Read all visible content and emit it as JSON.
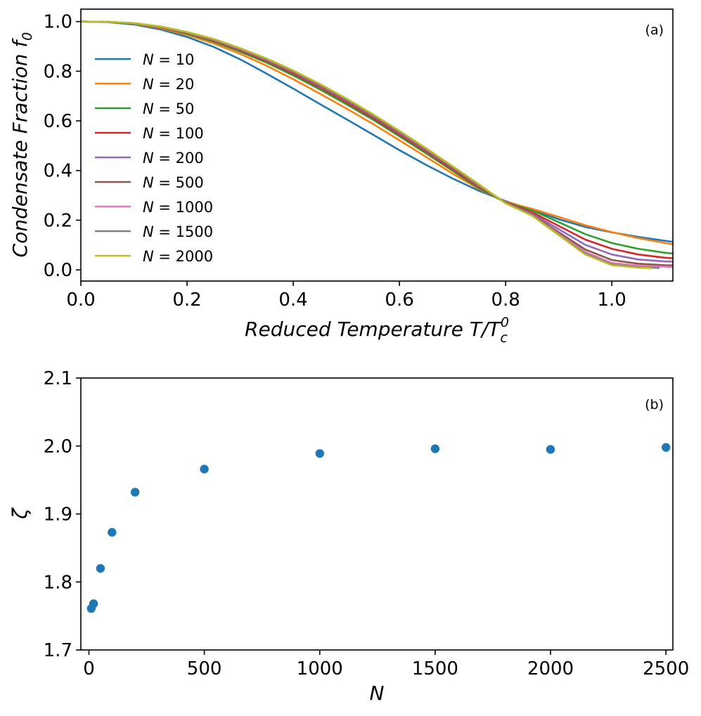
{
  "chart_data": [
    {
      "type": "line",
      "panel": "(a)",
      "xlabel": "Reduced Temperature T/T_c^0",
      "ylabel": "Condensate Fraction f_0",
      "xlim": [
        0.0,
        1.115
      ],
      "ylim": [
        -0.045,
        1.05
      ],
      "xticks": [
        0.0,
        0.2,
        0.4,
        0.6,
        0.8,
        1.0
      ],
      "xtick_labels": [
        "0.0",
        "0.2",
        "0.4",
        "0.6",
        "0.8",
        "1.0"
      ],
      "yticks": [
        0.0,
        0.2,
        0.4,
        0.6,
        0.8,
        1.0
      ],
      "ytick_labels": [
        "0.0",
        "0.2",
        "0.4",
        "0.6",
        "0.8",
        "1.0"
      ],
      "legend_position": "left",
      "series": [
        {
          "name": "N = 10",
          "N": 10,
          "color": "#1f77b4",
          "x": [
            0,
            0.05,
            0.1,
            0.15,
            0.2,
            0.25,
            0.3,
            0.35,
            0.4,
            0.45,
            0.5,
            0.55,
            0.6,
            0.65,
            0.7,
            0.75,
            0.8,
            0.85,
            0.9,
            0.95,
            1.0,
            1.05,
            1.1,
            1.115
          ],
          "y": [
            1.0,
            0.998,
            0.988,
            0.968,
            0.938,
            0.898,
            0.848,
            0.79,
            0.73,
            0.668,
            0.607,
            0.545,
            0.482,
            0.423,
            0.368,
            0.318,
            0.277,
            0.242,
            0.204,
            0.173,
            0.151,
            0.133,
            0.117,
            0.113
          ]
        },
        {
          "name": "N = 20",
          "N": 20,
          "color": "#ff7f0e",
          "x": [
            0,
            0.05,
            0.1,
            0.15,
            0.2,
            0.25,
            0.3,
            0.35,
            0.4,
            0.45,
            0.5,
            0.55,
            0.6,
            0.65,
            0.7,
            0.75,
            0.8,
            0.85,
            0.9,
            0.95,
            1.0,
            1.05,
            1.1,
            1.115
          ],
          "y": [
            1.0,
            0.999,
            0.99,
            0.973,
            0.946,
            0.912,
            0.87,
            0.822,
            0.768,
            0.71,
            0.65,
            0.588,
            0.522,
            0.455,
            0.388,
            0.325,
            0.274,
            0.246,
            0.213,
            0.18,
            0.152,
            0.128,
            0.108,
            0.103
          ]
        },
        {
          "name": "N = 50",
          "N": 50,
          "color": "#2ca02c",
          "x": [
            0,
            0.05,
            0.1,
            0.15,
            0.2,
            0.25,
            0.3,
            0.35,
            0.4,
            0.45,
            0.5,
            0.55,
            0.6,
            0.65,
            0.7,
            0.75,
            0.8,
            0.85,
            0.9,
            0.95,
            1.0,
            1.05,
            1.1,
            1.115
          ],
          "y": [
            1.0,
            0.999,
            0.991,
            0.976,
            0.951,
            0.919,
            0.879,
            0.834,
            0.783,
            0.727,
            0.667,
            0.605,
            0.538,
            0.469,
            0.399,
            0.328,
            0.271,
            0.24,
            0.192,
            0.144,
            0.108,
            0.085,
            0.069,
            0.066
          ]
        },
        {
          "name": "N = 100",
          "N": 100,
          "color": "#d62728",
          "x": [
            0,
            0.05,
            0.1,
            0.15,
            0.2,
            0.25,
            0.3,
            0.35,
            0.4,
            0.45,
            0.5,
            0.55,
            0.6,
            0.65,
            0.7,
            0.75,
            0.8,
            0.85,
            0.9,
            0.95,
            1.0,
            1.05,
            1.1,
            1.115
          ],
          "y": [
            1.0,
            0.999,
            0.992,
            0.977,
            0.954,
            0.923,
            0.884,
            0.84,
            0.79,
            0.735,
            0.675,
            0.612,
            0.545,
            0.476,
            0.405,
            0.333,
            0.272,
            0.232,
            0.177,
            0.122,
            0.085,
            0.062,
            0.049,
            0.047
          ]
        },
        {
          "name": "N = 200",
          "N": 200,
          "color": "#9467bd",
          "x": [
            0,
            0.05,
            0.1,
            0.15,
            0.2,
            0.25,
            0.3,
            0.35,
            0.4,
            0.45,
            0.5,
            0.55,
            0.6,
            0.65,
            0.7,
            0.75,
            0.8,
            0.85,
            0.9,
            0.95,
            1.0,
            1.05,
            1.1,
            1.115
          ],
          "y": [
            1.0,
            0.999,
            0.992,
            0.978,
            0.955,
            0.925,
            0.887,
            0.844,
            0.795,
            0.74,
            0.681,
            0.618,
            0.551,
            0.481,
            0.41,
            0.337,
            0.271,
            0.226,
            0.164,
            0.101,
            0.062,
            0.042,
            0.034,
            0.033
          ]
        },
        {
          "name": "N = 500",
          "N": 500,
          "color": "#8c564b",
          "x": [
            0,
            0.05,
            0.1,
            0.15,
            0.2,
            0.25,
            0.3,
            0.35,
            0.4,
            0.45,
            0.5,
            0.55,
            0.6,
            0.65,
            0.7,
            0.75,
            0.8,
            0.85,
            0.9,
            0.95,
            1.0,
            1.05,
            1.1,
            1.115
          ],
          "y": [
            1.0,
            0.999,
            0.993,
            0.979,
            0.956,
            0.927,
            0.89,
            0.847,
            0.799,
            0.744,
            0.685,
            0.622,
            0.555,
            0.485,
            0.413,
            0.34,
            0.27,
            0.222,
            0.152,
            0.082,
            0.04,
            0.025,
            0.019,
            0.018
          ]
        },
        {
          "name": "N = 1000",
          "N": 1000,
          "color": "#e377c2",
          "x": [
            0,
            0.05,
            0.1,
            0.15,
            0.2,
            0.25,
            0.3,
            0.35,
            0.4,
            0.45,
            0.5,
            0.55,
            0.6,
            0.65,
            0.7,
            0.75,
            0.8,
            0.85,
            0.9,
            0.95,
            1.0,
            1.05,
            1.1,
            1.115
          ],
          "y": [
            1.0,
            0.999,
            0.993,
            0.979,
            0.957,
            0.928,
            0.891,
            0.849,
            0.801,
            0.747,
            0.688,
            0.625,
            0.558,
            0.488,
            0.416,
            0.342,
            0.269,
            0.22,
            0.145,
            0.072,
            0.028,
            0.017,
            0.013,
            0.012
          ]
        },
        {
          "name": "N = 1500",
          "N": 1500,
          "color": "#7f7f7f",
          "x": [
            0,
            0.05,
            0.1,
            0.15,
            0.2,
            0.25,
            0.3,
            0.35,
            0.4,
            0.45,
            0.5,
            0.55,
            0.6,
            0.65,
            0.7,
            0.75,
            0.8,
            0.85,
            0.9,
            0.95,
            1.0,
            1.05,
            1.09
          ],
          "y": [
            1.0,
            0.999,
            0.993,
            0.98,
            0.958,
            0.929,
            0.892,
            0.85,
            0.802,
            0.748,
            0.689,
            0.626,
            0.559,
            0.489,
            0.417,
            0.343,
            0.269,
            0.219,
            0.142,
            0.066,
            0.022,
            0.011,
            0.008
          ]
        },
        {
          "name": "N = 2000",
          "N": 2000,
          "color": "#bcbd22",
          "x": [
            0,
            0.05,
            0.1,
            0.15,
            0.2,
            0.25,
            0.3,
            0.35,
            0.4,
            0.45,
            0.5,
            0.55,
            0.6,
            0.65,
            0.7,
            0.75,
            0.8,
            0.85,
            0.9,
            0.95,
            1.0,
            1.05,
            1.075
          ],
          "y": [
            1.0,
            0.999,
            0.994,
            0.98,
            0.958,
            0.93,
            0.893,
            0.851,
            0.803,
            0.749,
            0.69,
            0.627,
            0.56,
            0.49,
            0.418,
            0.344,
            0.268,
            0.218,
            0.14,
            0.062,
            0.019,
            0.009,
            0.007
          ]
        }
      ]
    },
    {
      "type": "scatter",
      "panel": "(b)",
      "xlabel": "N",
      "ylabel": "ζ",
      "xlim": [
        -35,
        2530
      ],
      "ylim": [
        1.7,
        2.1
      ],
      "xticks": [
        0,
        500,
        1000,
        1500,
        2000,
        2500
      ],
      "xtick_labels": [
        "0",
        "500",
        "1000",
        "1500",
        "2000",
        "2500"
      ],
      "yticks": [
        1.7,
        1.8,
        1.9,
        2.0,
        2.1
      ],
      "ytick_labels": [
        "1.7",
        "1.8",
        "1.9",
        "2.0",
        "2.1"
      ],
      "color": "#1f77b4",
      "points": [
        {
          "x": 10,
          "y": 1.761
        },
        {
          "x": 20,
          "y": 1.768
        },
        {
          "x": 50,
          "y": 1.82
        },
        {
          "x": 100,
          "y": 1.873
        },
        {
          "x": 200,
          "y": 1.932
        },
        {
          "x": 500,
          "y": 1.966
        },
        {
          "x": 1000,
          "y": 1.989
        },
        {
          "x": 1500,
          "y": 1.996
        },
        {
          "x": 2000,
          "y": 1.995
        },
        {
          "x": 2500,
          "y": 1.998
        }
      ]
    }
  ]
}
